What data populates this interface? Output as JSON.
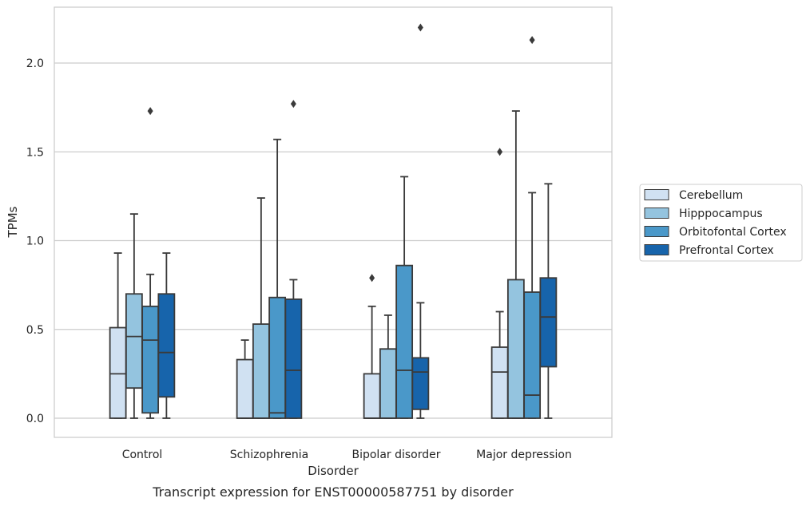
{
  "chart_data": {
    "type": "box",
    "caption": "Transcript expression for ENST00000587751 by disorder",
    "xlabel": "Disorder",
    "ylabel": "TPMs",
    "ylim": [
      -0.11,
      2.32
    ],
    "yticks": [
      0.0,
      0.5,
      1.0,
      1.5,
      2.0
    ],
    "ytick_labels": [
      "0.0",
      "0.5",
      "1.0",
      "1.5",
      "2.0"
    ],
    "grid": "horizontal",
    "legend_placement": "right",
    "categories": [
      "Control",
      "Schizophrenia",
      "Bipolar disorder",
      "Major depression"
    ],
    "series": [
      {
        "name": "Cerebellum",
        "color": "#d0e1f2",
        "boxes": [
          {
            "whisker_low": 0.0,
            "q1": 0.0,
            "median": 0.25,
            "q3": 0.51,
            "whisker_high": 0.93,
            "outliers": []
          },
          {
            "whisker_low": 0.0,
            "q1": 0.0,
            "median": 0.0,
            "q3": 0.33,
            "whisker_high": 0.44,
            "outliers": []
          },
          {
            "whisker_low": 0.0,
            "q1": 0.0,
            "median": 0.0,
            "q3": 0.25,
            "whisker_high": 0.63,
            "outliers": [
              0.79
            ]
          },
          {
            "whisker_low": 0.0,
            "q1": 0.0,
            "median": 0.26,
            "q3": 0.4,
            "whisker_high": 0.6,
            "outliers": [
              1.5
            ]
          }
        ]
      },
      {
        "name": "Hipppocampus",
        "color": "#94c4df",
        "boxes": [
          {
            "whisker_low": 0.0,
            "q1": 0.17,
            "median": 0.46,
            "q3": 0.7,
            "whisker_high": 1.15,
            "outliers": []
          },
          {
            "whisker_low": 0.0,
            "q1": 0.0,
            "median": 0.0,
            "q3": 0.53,
            "whisker_high": 1.24,
            "outliers": []
          },
          {
            "whisker_low": 0.0,
            "q1": 0.0,
            "median": 0.0,
            "q3": 0.39,
            "whisker_high": 0.58,
            "outliers": []
          },
          {
            "whisker_low": 0.0,
            "q1": 0.0,
            "median": 0.0,
            "q3": 0.78,
            "whisker_high": 1.73,
            "outliers": []
          }
        ]
      },
      {
        "name": "Orbitofontal Cortex",
        "color": "#4a98c9",
        "boxes": [
          {
            "whisker_low": 0.0,
            "q1": 0.03,
            "median": 0.44,
            "q3": 0.63,
            "whisker_high": 0.81,
            "outliers": [
              1.73
            ]
          },
          {
            "whisker_low": 0.0,
            "q1": 0.0,
            "median": 0.03,
            "q3": 0.68,
            "whisker_high": 1.57,
            "outliers": []
          },
          {
            "whisker_low": 0.0,
            "q1": 0.0,
            "median": 0.27,
            "q3": 0.86,
            "whisker_high": 1.36,
            "outliers": []
          },
          {
            "whisker_low": 0.0,
            "q1": 0.0,
            "median": 0.13,
            "q3": 0.71,
            "whisker_high": 1.27,
            "outliers": [
              2.13
            ]
          }
        ]
      },
      {
        "name": "Prefrontal Cortex",
        "color": "#1764ab",
        "boxes": [
          {
            "whisker_low": 0.0,
            "q1": 0.12,
            "median": 0.37,
            "q3": 0.7,
            "whisker_high": 0.93,
            "outliers": []
          },
          {
            "whisker_low": 0.0,
            "q1": 0.0,
            "median": 0.27,
            "q3": 0.67,
            "whisker_high": 0.78,
            "outliers": [
              1.77
            ]
          },
          {
            "whisker_low": 0.0,
            "q1": 0.05,
            "median": 0.26,
            "q3": 0.34,
            "whisker_high": 0.65,
            "outliers": [
              2.2
            ]
          },
          {
            "whisker_low": 0.0,
            "q1": 0.29,
            "median": 0.57,
            "q3": 0.79,
            "whisker_high": 1.32,
            "outliers": []
          }
        ]
      }
    ]
  }
}
